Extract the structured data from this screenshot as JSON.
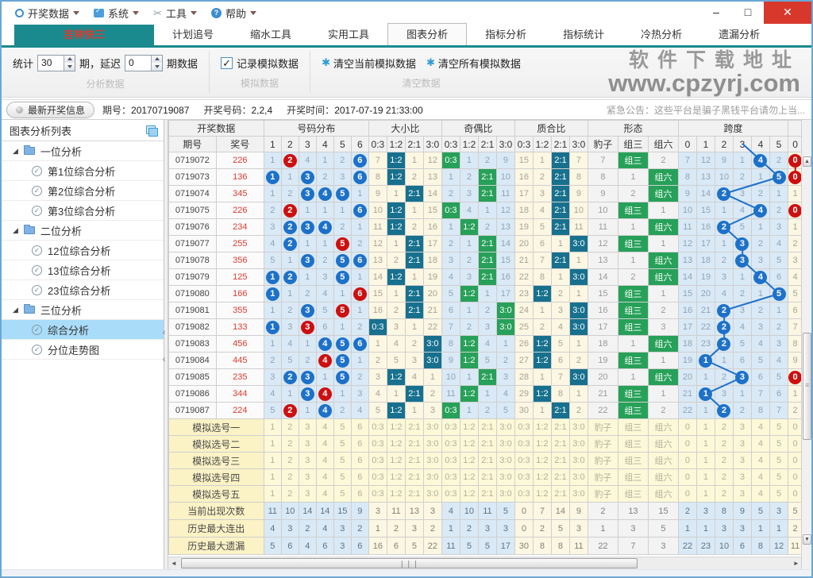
{
  "menu": {
    "items": [
      {
        "label": "开奖数据",
        "icon": "circle-icon"
      },
      {
        "label": "系统",
        "icon": "monitor-icon"
      },
      {
        "label": "工具",
        "icon": "tools-icon"
      },
      {
        "label": "帮助",
        "icon": "help-icon"
      }
    ]
  },
  "window_controls": {
    "minimize": "–",
    "maximize": "□",
    "close": "✕"
  },
  "tabs": {
    "items": [
      "吉林快三",
      "计划追号",
      "缩水工具",
      "实用工具",
      "图表分析",
      "指标分析",
      "指标统计",
      "冷热分析",
      "遗漏分析"
    ],
    "active": "吉林快三",
    "selected_sub": "图表分析"
  },
  "toolbar": {
    "stat_label": "统计",
    "stat_value": "30",
    "delay_label": "期，延迟",
    "delay_value": "0",
    "suffix_label": "期数据",
    "group1_caption": "分析数据",
    "checkbox_label": "记录模拟数据",
    "checkbox_checked": "✓",
    "group2_caption": "模拟数据",
    "clear_current_label": "清空当前模拟数据",
    "clear_all_label": "清空所有模拟数据",
    "group3_caption": "清空数据"
  },
  "watermark": {
    "line1": "软件下载地址",
    "line2": "www.cpzyrj.com"
  },
  "infobar": {
    "button": "最新开奖信息",
    "issue_label": "期号：",
    "issue": "20170719087",
    "number_label": "开奖号码：",
    "number": "2,2,4",
    "time_label": "开奖时间：",
    "time": "2017-07-19 21:33:00",
    "notice": "紧急公告：这些平台是骗子黑钱平台请勿上当..."
  },
  "sidebar": {
    "title": "图表分析列表",
    "groups": [
      {
        "label": "一位分析",
        "items": [
          "第1位综合分析",
          "第2位综合分析",
          "第3位综合分析"
        ]
      },
      {
        "label": "二位分析",
        "items": [
          "12位综合分析",
          "13位综合分析",
          "23位综合分析"
        ]
      },
      {
        "label": "三位分析",
        "items": [
          "综合分析",
          "分位走势图"
        ],
        "selected": "综合分析"
      }
    ]
  },
  "table": {
    "groups": [
      {
        "label": "开奖数据",
        "span": 2
      },
      {
        "label": "号码分布",
        "span": 6
      },
      {
        "label": "大小比",
        "span": 4
      },
      {
        "label": "奇偶比",
        "span": 4
      },
      {
        "label": "质合比",
        "span": 4
      },
      {
        "label": "形态",
        "span": 3
      },
      {
        "label": "跨度",
        "span": 6
      },
      {
        "label": "",
        "span": 1
      }
    ],
    "subheaders": [
      "期号",
      "奖号",
      "1",
      "2",
      "3",
      "4",
      "5",
      "6",
      "0:3",
      "1:2",
      "2:1",
      "3:0",
      "0:3",
      "1:2",
      "2:1",
      "3:0",
      "0:3",
      "1:2",
      "2:1",
      "3:0",
      "豹子",
      "组三",
      "组六",
      "0",
      "1",
      "2",
      "3",
      "4",
      "5",
      "0"
    ],
    "rows": [
      {
        "issue": "0719072",
        "number": "226",
        "cells": [
          "1",
          "R2",
          "4",
          "1",
          "2",
          "B6",
          "7",
          "T1:2",
          "1",
          "12",
          "G0:3",
          "1",
          "2",
          "9",
          "15",
          "1",
          "T2:1",
          "7",
          "7",
          "G组三",
          "2",
          "7",
          "12",
          "9",
          "1",
          "B4",
          "2",
          "R0"
        ]
      },
      {
        "issue": "0719073",
        "number": "136",
        "cells": [
          "B1",
          "1",
          "B3",
          "2",
          "3",
          "B6",
          "8",
          "T1:2",
          "2",
          "13",
          "1",
          "2",
          "G2:1",
          "10",
          "16",
          "2",
          "T2:1",
          "8",
          "8",
          "1",
          "G组六",
          "8",
          "13",
          "10",
          "2",
          "1",
          "B5",
          "R0"
        ]
      },
      {
        "issue": "0719074",
        "number": "345",
        "cells": [
          "1",
          "2",
          "B3",
          "B4",
          "B5",
          "1",
          "9",
          "1",
          "T2:1",
          "14",
          "2",
          "3",
          "G2:1",
          "11",
          "17",
          "3",
          "T2:1",
          "9",
          "9",
          "2",
          "G组六",
          "9",
          "14",
          "B2",
          "3",
          "2",
          "1",
          "1"
        ]
      },
      {
        "issue": "0719075",
        "number": "226",
        "cells": [
          "2",
          "R2",
          "1",
          "1",
          "1",
          "B6",
          "10",
          "T1:2",
          "1",
          "15",
          "G0:3",
          "4",
          "1",
          "12",
          "18",
          "4",
          "T2:1",
          "10",
          "10",
          "G组三",
          "1",
          "10",
          "15",
          "1",
          "4",
          "B4",
          "2",
          "R0"
        ]
      },
      {
        "issue": "0719076",
        "number": "234",
        "cells": [
          "3",
          "B2",
          "B3",
          "B4",
          "2",
          "1",
          "11",
          "T1:2",
          "2",
          "16",
          "1",
          "G1:2",
          "2",
          "13",
          "19",
          "5",
          "T2:1",
          "11",
          "11",
          "1",
          "G组六",
          "11",
          "16",
          "B2",
          "5",
          "1",
          "3",
          "1"
        ]
      },
      {
        "issue": "0719077",
        "number": "255",
        "cells": [
          "4",
          "B2",
          "1",
          "1",
          "R5",
          "2",
          "12",
          "1",
          "T2:1",
          "17",
          "2",
          "1",
          "G2:1",
          "14",
          "20",
          "6",
          "1",
          "T3:0",
          "12",
          "G组三",
          "1",
          "12",
          "17",
          "1",
          "B3",
          "2",
          "4",
          "2"
        ]
      },
      {
        "issue": "0719078",
        "number": "356",
        "cells": [
          "5",
          "1",
          "B3",
          "2",
          "B5",
          "B6",
          "13",
          "2",
          "T2:1",
          "18",
          "3",
          "2",
          "G2:1",
          "15",
          "21",
          "7",
          "T2:1",
          "1",
          "13",
          "1",
          "G组六",
          "13",
          "18",
          "2",
          "B3",
          "3",
          "5",
          "3"
        ]
      },
      {
        "issue": "0719079",
        "number": "125",
        "cells": [
          "B1",
          "B2",
          "1",
          "3",
          "B5",
          "1",
          "14",
          "T1:2",
          "1",
          "19",
          "4",
          "3",
          "G2:1",
          "16",
          "22",
          "8",
          "1",
          "T3:0",
          "14",
          "2",
          "G组六",
          "14",
          "19",
          "3",
          "1",
          "B4",
          "6",
          "4"
        ]
      },
      {
        "issue": "0719080",
        "number": "166",
        "cells": [
          "B1",
          "1",
          "2",
          "4",
          "1",
          "R6",
          "15",
          "1",
          "T2:1",
          "20",
          "5",
          "G1:2",
          "1",
          "17",
          "23",
          "T1:2",
          "2",
          "1",
          "15",
          "G组三",
          "1",
          "15",
          "20",
          "4",
          "2",
          "1",
          "B5",
          "5"
        ]
      },
      {
        "issue": "0719081",
        "number": "355",
        "cells": [
          "1",
          "2",
          "B3",
          "5",
          "R5",
          "1",
          "16",
          "2",
          "T2:1",
          "21",
          "6",
          "1",
          "2",
          "G3:0",
          "24",
          "1",
          "3",
          "T3:0",
          "16",
          "G组三",
          "2",
          "16",
          "21",
          "B2",
          "3",
          "2",
          "1",
          "6"
        ]
      },
      {
        "issue": "0719082",
        "number": "133",
        "cells": [
          "B1",
          "3",
          "R3",
          "6",
          "1",
          "2",
          "T0:3",
          "3",
          "1",
          "22",
          "7",
          "2",
          "3",
          "G3:0",
          "25",
          "2",
          "4",
          "T3:0",
          "17",
          "G组三",
          "3",
          "17",
          "22",
          "B2",
          "4",
          "3",
          "2",
          "7"
        ]
      },
      {
        "issue": "0719083",
        "number": "456",
        "cells": [
          "1",
          "4",
          "1",
          "B4",
          "B5",
          "B6",
          "1",
          "4",
          "2",
          "T3:0",
          "8",
          "G1:2",
          "4",
          "1",
          "26",
          "T1:2",
          "5",
          "1",
          "18",
          "1",
          "G组六",
          "18",
          "23",
          "B2",
          "5",
          "4",
          "3",
          "8"
        ]
      },
      {
        "issue": "0719084",
        "number": "445",
        "cells": [
          "2",
          "5",
          "2",
          "R4",
          "B5",
          "1",
          "2",
          "5",
          "3",
          "T3:0",
          "9",
          "G1:2",
          "5",
          "2",
          "27",
          "T1:2",
          "6",
          "2",
          "19",
          "G组三",
          "1",
          "19",
          "B1",
          "1",
          "6",
          "5",
          "4",
          "9"
        ]
      },
      {
        "issue": "0719085",
        "number": "235",
        "cells": [
          "3",
          "B2",
          "B3",
          "1",
          "B5",
          "2",
          "3",
          "T1:2",
          "4",
          "1",
          "10",
          "1",
          "G2:1",
          "3",
          "28",
          "1",
          "7",
          "T3:0",
          "20",
          "1",
          "G组六",
          "20",
          "1",
          "2",
          "B3",
          "6",
          "5",
          "R0"
        ]
      },
      {
        "issue": "0719086",
        "number": "344",
        "cells": [
          "4",
          "1",
          "B3",
          "R4",
          "1",
          "3",
          "4",
          "1",
          "T2:1",
          "2",
          "11",
          "G1:2",
          "1",
          "4",
          "29",
          "T1:2",
          "8",
          "1",
          "21",
          "G组三",
          "1",
          "21",
          "B1",
          "3",
          "1",
          "7",
          "6",
          "1"
        ]
      },
      {
        "issue": "0719087",
        "number": "224",
        "cells": [
          "5",
          "R2",
          "1",
          "B4",
          "2",
          "4",
          "5",
          "T1:2",
          "1",
          "3",
          "G0:3",
          "1",
          "2",
          "5",
          "30",
          "1",
          "T2:1",
          "2",
          "22",
          "G组三",
          "2",
          "22",
          "1",
          "B2",
          "2",
          "8",
          "7",
          "2"
        ]
      }
    ],
    "sim_rows": [
      "模拟选号一",
      "模拟选号二",
      "模拟选号三",
      "模拟选号四",
      "模拟选号五"
    ],
    "sim_cells": [
      "1",
      "2",
      "3",
      "4",
      "5",
      "6",
      "0:3",
      "1:2",
      "2:1",
      "3:0",
      "0:3",
      "1:2",
      "2:1",
      "3:0",
      "0:3",
      "1:2",
      "2:1",
      "3:0",
      "豹子",
      "组三",
      "组六",
      "0",
      "1",
      "2",
      "3",
      "4",
      "5",
      "0"
    ],
    "stat_rows": [
      {
        "label": "当前出现次数",
        "values": [
          "11",
          "10",
          "14",
          "14",
          "15",
          "9",
          "3",
          "11",
          "13",
          "3",
          "4",
          "10",
          "11",
          "5",
          "0",
          "7",
          "14",
          "9",
          "2",
          "13",
          "15",
          "2",
          "3",
          "8",
          "9",
          "5",
          "3",
          "5"
        ]
      },
      {
        "label": "历史最大连出",
        "values": [
          "4",
          "3",
          "2",
          "4",
          "3",
          "2",
          "1",
          "2",
          "3",
          "2",
          "1",
          "2",
          "3",
          "3",
          "0",
          "2",
          "5",
          "3",
          "1",
          "3",
          "5",
          "1",
          "1",
          "3",
          "3",
          "1",
          "1",
          "2"
        ]
      },
      {
        "label": "历史最大遗漏",
        "values": [
          "5",
          "6",
          "4",
          "6",
          "3",
          "6",
          "16",
          "6",
          "5",
          "22",
          "11",
          "5",
          "5",
          "17",
          "30",
          "8",
          "8",
          "11",
          "22",
          "7",
          "3",
          "22",
          "23",
          "10",
          "6",
          "8",
          "12",
          "11"
        ]
      }
    ]
  },
  "colors": {
    "accent_teal": "#1a8a8e",
    "active_tab_text": "#e0392e",
    "hit_teal": "#17718e",
    "hit_green": "#27a159",
    "ball_blue": "#1d71c9",
    "ball_red": "#cd0f0f",
    "band_blue": "#dae9f6",
    "band_cream": "#fcf7e2",
    "sim_yellow": "#fdf8d7",
    "selected_tree_item": "#a9dcf8",
    "close_button": "#d8382c"
  }
}
